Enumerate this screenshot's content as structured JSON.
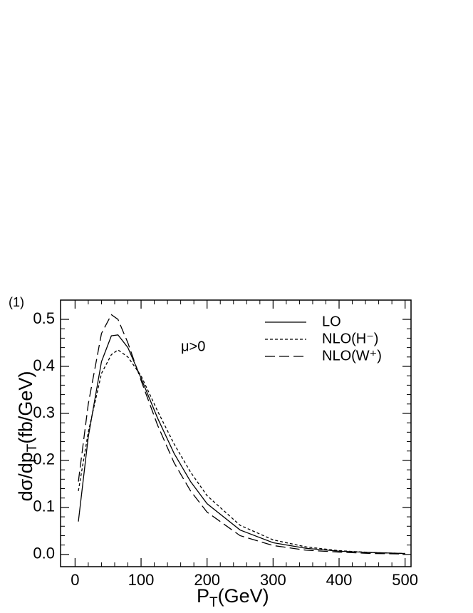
{
  "chart_data": {
    "type": "line",
    "panel_label": "(1)",
    "annotation": "μ>0",
    "x_label": [
      "P",
      "T",
      "(GeV)"
    ],
    "y_label": [
      "dσ/dp",
      "T",
      "(fb/GeV)"
    ],
    "x": [
      5,
      20,
      40,
      55,
      65,
      80,
      100,
      125,
      150,
      175,
      200,
      250,
      300,
      350,
      400,
      450,
      500
    ],
    "series": [
      {
        "name": "LO",
        "color": "#000000",
        "line_style": "solid",
        "values": [
          0.07,
          0.25,
          0.41,
          0.465,
          0.467,
          0.44,
          0.375,
          0.29,
          0.215,
          0.155,
          0.108,
          0.052,
          0.025,
          0.013,
          0.007,
          0.004,
          0.002
        ]
      },
      {
        "name": "NLO(H⁻)",
        "color": "#000000",
        "line_style": "dotted",
        "values": [
          0.135,
          0.26,
          0.385,
          0.425,
          0.435,
          0.42,
          0.38,
          0.305,
          0.235,
          0.175,
          0.125,
          0.062,
          0.031,
          0.016,
          0.008,
          0.004,
          0.002
        ]
      },
      {
        "name": "NLO(W⁺)",
        "color": "#000000",
        "line_style": "dashed",
        "values": [
          0.155,
          0.32,
          0.47,
          0.51,
          0.5,
          0.45,
          0.37,
          0.275,
          0.195,
          0.135,
          0.09,
          0.04,
          0.019,
          0.009,
          0.005,
          0.002,
          0.001
        ]
      }
    ],
    "xlim": [
      -22,
      509
    ],
    "ylim": [
      -0.026,
      0.541
    ],
    "xticks": [
      0,
      100,
      200,
      300,
      400,
      500
    ],
    "yticks": [
      {
        "value": 0,
        "label": "0.0"
      },
      0.1,
      0.2,
      0.3,
      0.4,
      0.5
    ],
    "legend": "upper right"
  }
}
